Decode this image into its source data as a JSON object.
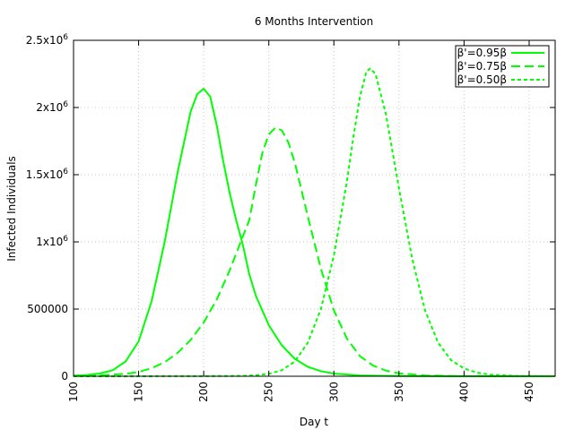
{
  "chart_data": {
    "type": "line",
    "title": "6 Months Intervention",
    "xlabel": "Day t",
    "ylabel": "Infected Individuals",
    "xlim": [
      100,
      470
    ],
    "ylim": [
      0,
      2500000
    ],
    "grid": true,
    "legend_position": "top-right",
    "x_ticks": [
      100,
      150,
      200,
      250,
      300,
      350,
      400,
      450
    ],
    "y_ticks": [
      {
        "value": 0,
        "label": "0"
      },
      {
        "value": 500000,
        "label": "500000"
      },
      {
        "value": 1000000,
        "label": "1x10",
        "exp": "6"
      },
      {
        "value": 1500000,
        "label": "1.5x10",
        "exp": "6"
      },
      {
        "value": 2000000,
        "label": "2x10",
        "exp": "6"
      },
      {
        "value": 2500000,
        "label": "2.5x10",
        "exp": "6"
      }
    ],
    "series": [
      {
        "name": "β'=0.95β",
        "style": "solid",
        "color": "#00ff00",
        "points": [
          [
            100,
            5000
          ],
          [
            110,
            9000
          ],
          [
            120,
            20000
          ],
          [
            130,
            45000
          ],
          [
            140,
            110000
          ],
          [
            150,
            260000
          ],
          [
            160,
            560000
          ],
          [
            170,
            1000000
          ],
          [
            180,
            1520000
          ],
          [
            190,
            1970000
          ],
          [
            195,
            2100000
          ],
          [
            200,
            2140000
          ],
          [
            205,
            2080000
          ],
          [
            210,
            1870000
          ],
          [
            215,
            1600000
          ],
          [
            220,
            1360000
          ],
          [
            225,
            1160000
          ],
          [
            230,
            980000
          ],
          [
            235,
            760000
          ],
          [
            240,
            600000
          ],
          [
            250,
            380000
          ],
          [
            260,
            230000
          ],
          [
            270,
            130000
          ],
          [
            280,
            70000
          ],
          [
            290,
            38000
          ],
          [
            300,
            20000
          ],
          [
            320,
            6000
          ],
          [
            350,
            1500
          ],
          [
            400,
            200
          ],
          [
            470,
            0
          ]
        ]
      },
      {
        "name": "β'=0.75β",
        "style": "dashed",
        "color": "#00ff00",
        "points": [
          [
            100,
            1500
          ],
          [
            120,
            6000
          ],
          [
            140,
            18000
          ],
          [
            150,
            32000
          ],
          [
            160,
            60000
          ],
          [
            170,
            105000
          ],
          [
            180,
            175000
          ],
          [
            190,
            270000
          ],
          [
            200,
            400000
          ],
          [
            210,
            570000
          ],
          [
            220,
            790000
          ],
          [
            230,
            1040000
          ],
          [
            235,
            1160000
          ],
          [
            240,
            1420000
          ],
          [
            245,
            1660000
          ],
          [
            250,
            1800000
          ],
          [
            255,
            1850000
          ],
          [
            260,
            1830000
          ],
          [
            265,
            1740000
          ],
          [
            270,
            1590000
          ],
          [
            280,
            1190000
          ],
          [
            290,
            800000
          ],
          [
            300,
            490000
          ],
          [
            310,
            280000
          ],
          [
            320,
            150000
          ],
          [
            330,
            80000
          ],
          [
            340,
            42000
          ],
          [
            350,
            22000
          ],
          [
            370,
            6000
          ],
          [
            400,
            1000
          ],
          [
            470,
            0
          ]
        ]
      },
      {
        "name": "β'=0.50β",
        "style": "dotted",
        "color": "#00ff00",
        "points": [
          [
            100,
            0
          ],
          [
            200,
            1000
          ],
          [
            230,
            3000
          ],
          [
            240,
            7000
          ],
          [
            250,
            18000
          ],
          [
            260,
            45000
          ],
          [
            270,
            110000
          ],
          [
            280,
            250000
          ],
          [
            290,
            500000
          ],
          [
            300,
            900000
          ],
          [
            310,
            1450000
          ],
          [
            315,
            1780000
          ],
          [
            320,
            2080000
          ],
          [
            325,
            2270000
          ],
          [
            328,
            2290000
          ],
          [
            332,
            2250000
          ],
          [
            340,
            1950000
          ],
          [
            350,
            1400000
          ],
          [
            360,
            880000
          ],
          [
            370,
            490000
          ],
          [
            380,
            250000
          ],
          [
            390,
            120000
          ],
          [
            400,
            58000
          ],
          [
            410,
            27000
          ],
          [
            420,
            12000
          ],
          [
            440,
            2500
          ],
          [
            470,
            300
          ]
        ]
      }
    ]
  }
}
